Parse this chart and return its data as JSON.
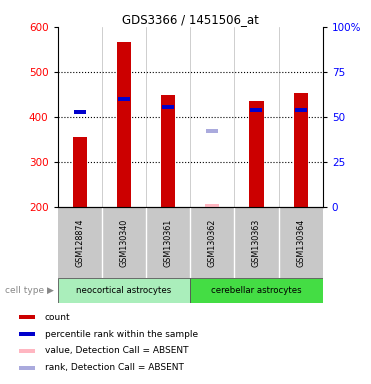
{
  "title": "GDS3366 / 1451506_at",
  "samples": [
    "GSM128874",
    "GSM130340",
    "GSM130361",
    "GSM130362",
    "GSM130363",
    "GSM130364"
  ],
  "count_values": [
    357,
    567,
    449,
    207,
    436,
    454
  ],
  "rank_values": [
    412,
    440,
    422,
    370,
    415,
    416
  ],
  "absent": [
    false,
    false,
    false,
    true,
    false,
    false
  ],
  "ylim_left": [
    200,
    600
  ],
  "ylim_right": [
    0,
    100
  ],
  "yticks_left": [
    200,
    300,
    400,
    500,
    600
  ],
  "yticks_right": [
    0,
    25,
    50,
    75,
    100
  ],
  "bar_color_present": "#CC0000",
  "bar_color_absent": "#FFB6C1",
  "rank_color_present": "#0000CC",
  "rank_color_absent": "#AAAADD",
  "baseline": 200,
  "neocortical_color": "#AAEEBB",
  "cerebellar_color": "#44DD44",
  "label_bg_color": "#C8C8C8",
  "legend_items": [
    {
      "color": "#CC0000",
      "label": "count"
    },
    {
      "color": "#0000CC",
      "label": "percentile rank within the sample"
    },
    {
      "color": "#FFB6C1",
      "label": "value, Detection Call = ABSENT"
    },
    {
      "color": "#AAAADD",
      "label": "rank, Detection Call = ABSENT"
    }
  ]
}
